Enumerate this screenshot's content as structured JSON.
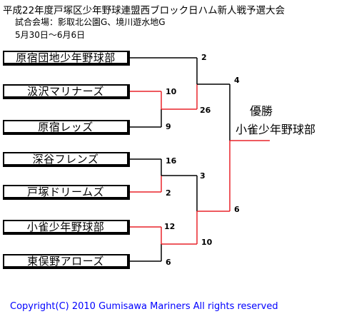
{
  "header": {
    "title": "平成22年度戸塚区少年野球連盟西ブロック日ハム新人戦予選大会",
    "venue": "試合会場：影取北公園G、境川遊水地G",
    "dates": "5月30日～6月6日"
  },
  "teams": [
    "原宿団地少年野球部",
    "汲沢マリナーズ",
    "原宿レッズ",
    "深谷フレンズ",
    "戸塚ドリームズ",
    "小雀少年野球部",
    "東俣野アローズ"
  ],
  "scores": {
    "r1_harajuku_danchi": "2",
    "r1_gumisawa": "10",
    "r1_harajuku_reds": "9",
    "r1_semi_top": "26",
    "r1_final_top": "4",
    "r1_fukaya": "16",
    "r1_totsuka": "2",
    "r1_semi_bottom": "3",
    "r1_kosuzume": "12",
    "r1_higashimatano": "6",
    "r1_semi_bottom2": "10",
    "r1_final_bottom": "6"
  },
  "champion": {
    "label": "優勝",
    "team": "小雀少年野球部"
  },
  "colors": {
    "winner_line": "#e8242a",
    "loser_line": "#000000",
    "copyright": "#0000ff"
  },
  "footer": {
    "copyright": "Copyright(C) 2010 Gumisawa Mariners All rights reserved"
  }
}
